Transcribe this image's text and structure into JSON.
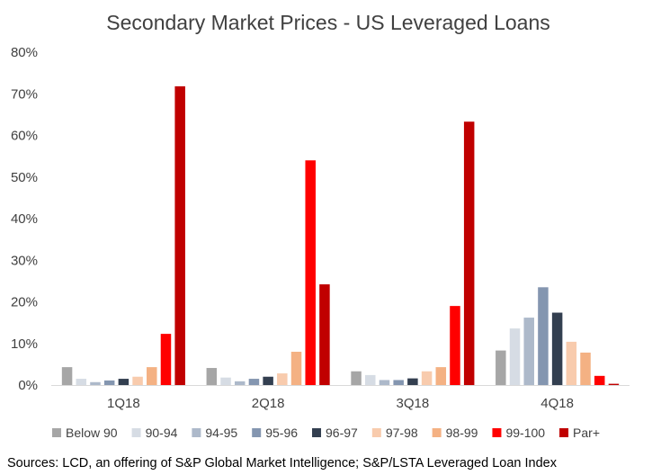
{
  "chart_data": {
    "type": "bar",
    "title": "Secondary Market Prices - US Leveraged Loans",
    "xlabel": "",
    "ylabel": "",
    "ylim": [
      0,
      80
    ],
    "yticks": [
      "0%",
      "10%",
      "20%",
      "30%",
      "40%",
      "50%",
      "60%",
      "70%",
      "80%"
    ],
    "grid": false,
    "legend_position": "bottom",
    "categories": [
      "1Q18",
      "2Q18",
      "3Q18",
      "4Q18"
    ],
    "series": [
      {
        "name": "Below 90",
        "color": "#a6a6a6",
        "values": [
          4.3,
          4.1,
          3.3,
          8.3
        ]
      },
      {
        "name": "90-94",
        "color": "#d6dce4",
        "values": [
          1.5,
          1.8,
          2.4,
          13.6
        ]
      },
      {
        "name": "94-95",
        "color": "#adb9ca",
        "values": [
          0.7,
          0.9,
          1.2,
          16.2
        ]
      },
      {
        "name": "95-96",
        "color": "#8496b0",
        "values": [
          1.1,
          1.5,
          1.2,
          23.5
        ]
      },
      {
        "name": "96-97",
        "color": "#333f50",
        "values": [
          1.5,
          2.0,
          1.6,
          17.4
        ]
      },
      {
        "name": "97-98",
        "color": "#f8cbad",
        "values": [
          2.0,
          2.8,
          3.3,
          10.4
        ]
      },
      {
        "name": "98-99",
        "color": "#f4b183",
        "values": [
          4.3,
          8.0,
          4.3,
          7.8
        ]
      },
      {
        "name": "99-100",
        "color": "#ff0000",
        "values": [
          12.3,
          54.0,
          19.0,
          2.2
        ]
      },
      {
        "name": "Par+",
        "color": "#c00000",
        "values": [
          71.8,
          24.2,
          63.3,
          0.3
        ]
      }
    ],
    "source": "Sources: LCD, an offering of S&P Global Market Intelligence; S&P/LSTA Leveraged Loan Index"
  }
}
